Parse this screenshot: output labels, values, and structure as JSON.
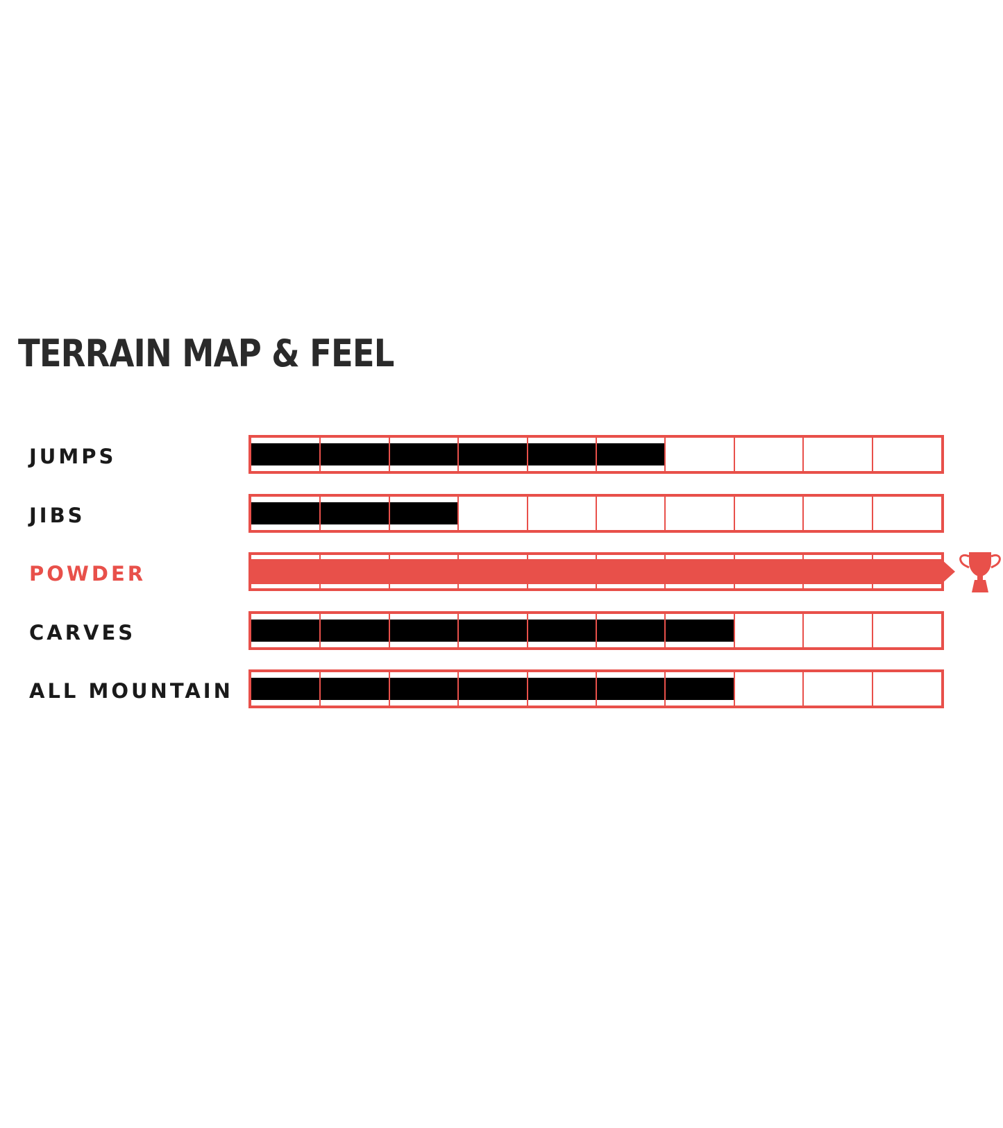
{
  "chart_data": {
    "type": "bar",
    "title": "TERRAIN MAP & FEEL",
    "categories": [
      "JUMPS",
      "JIBS",
      "POWDER",
      "CARVES",
      "ALL MOUNTAIN"
    ],
    "values": [
      6,
      3,
      10,
      7,
      7
    ],
    "scale_max": 10,
    "highlighted": "POWDER",
    "highlight_icon": "trophy-icon",
    "colors": {
      "fill": "#000000",
      "frame": "#e8504a",
      "highlight": "#e8504a",
      "title": "#2a2a2a"
    }
  }
}
